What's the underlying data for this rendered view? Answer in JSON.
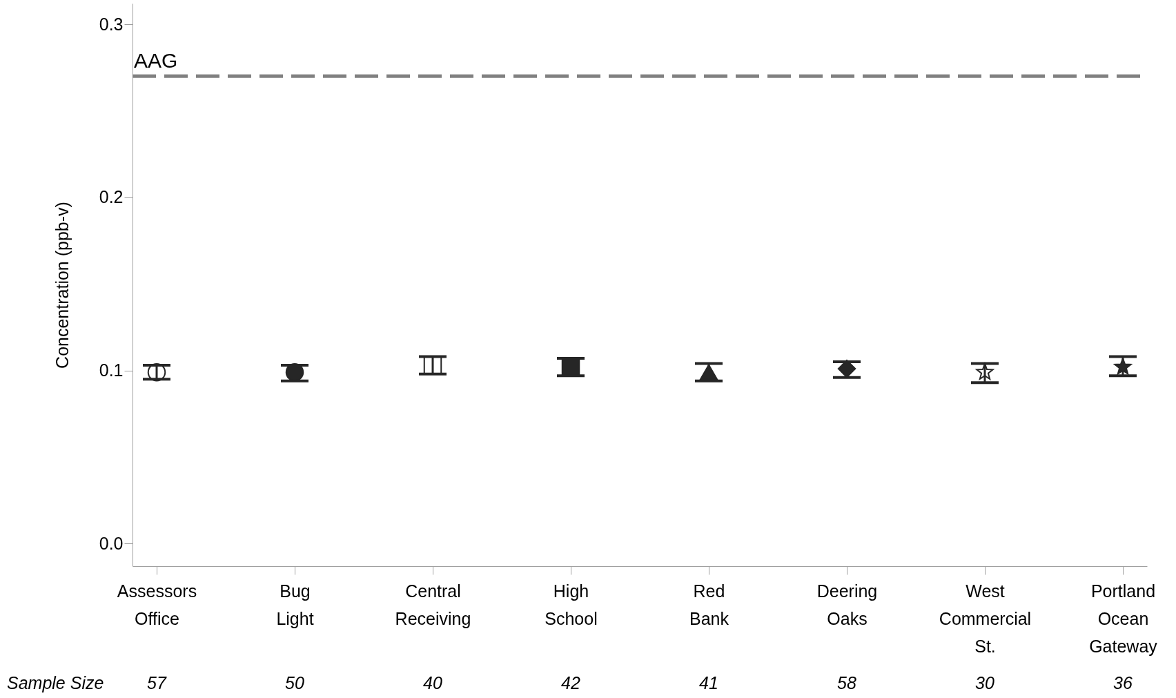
{
  "chart_data": {
    "type": "scatter",
    "ylabel": "Concentration (ppb-v)",
    "categories": [
      "Assessors Office",
      "Bug Light",
      "Central Receiving",
      "High School",
      "Red Bank",
      "Deering Oaks",
      "West Commercial St.",
      "Portland Ocean Gateway"
    ],
    "values": [
      0.099,
      0.099,
      0.103,
      0.102,
      0.099,
      0.101,
      0.099,
      0.102
    ],
    "errors": [
      [
        0.095,
        0.103
      ],
      [
        0.094,
        0.103
      ],
      [
        0.098,
        0.108
      ],
      [
        0.097,
        0.107
      ],
      [
        0.094,
        0.104
      ],
      [
        0.096,
        0.105
      ],
      [
        0.093,
        0.104
      ],
      [
        0.097,
        0.108
      ]
    ],
    "marker": [
      "circle",
      "circle",
      "square",
      "square",
      "triangle",
      "diamond",
      "star",
      "star"
    ],
    "colors": [
      "#ffffff",
      "#262626",
      "#ffffff",
      "#262626",
      "#262626",
      "#262626",
      "#ffffff",
      "#262626"
    ],
    "ylim": [
      -0.013,
      0.312
    ],
    "yticks": [
      {
        "value": 0,
        "label": "0.0"
      },
      0.1,
      0.2,
      0.3
    ],
    "ref_lines": [
      {
        "axis": "y",
        "value": 0.27,
        "label": "AAG",
        "color": "#808080",
        "line_style": "dashed"
      }
    ],
    "annotations": [
      "Sample Size",
      "57",
      "50",
      "40",
      "42",
      "41",
      "58",
      "30",
      "36"
    ],
    "grid": false
  }
}
